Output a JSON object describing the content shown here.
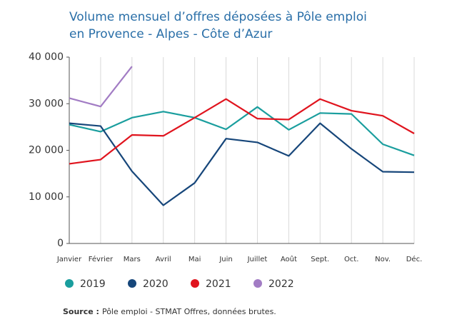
{
  "chart_data": {
    "type": "line",
    "title": [
      "Volume mensuel d’offres déposées à Pôle emploi",
      "en Provence - Alpes - Côte d’Azur"
    ],
    "categories": [
      "Janvier",
      "Février",
      "Mars",
      "Avril",
      "Mai",
      "Juin",
      "Juillet",
      "Août",
      "Sept.",
      "Oct.",
      "Nov.",
      "Déc."
    ],
    "series": [
      {
        "name": "2019",
        "color": "#1a9e9e",
        "values": [
          25500,
          24000,
          27000,
          28300,
          27000,
          24500,
          29300,
          24400,
          28000,
          27800,
          21300,
          18900
        ]
      },
      {
        "name": "2020",
        "color": "#16467a",
        "values": [
          25800,
          25200,
          15500,
          8200,
          13000,
          22500,
          21700,
          18800,
          25800,
          20300,
          15400,
          15300
        ]
      },
      {
        "name": "2021",
        "color": "#e0141e",
        "values": [
          17100,
          18000,
          23300,
          23100,
          27000,
          31000,
          26800,
          26600,
          31000,
          28500,
          27400,
          23600
        ]
      },
      {
        "name": "2022",
        "color": "#a27cc4",
        "values": [
          31200,
          29400,
          38000,
          null,
          null,
          null,
          null,
          null,
          null,
          null,
          null,
          null
        ]
      }
    ],
    "ylim": [
      0,
      40000
    ],
    "yticks": [
      0,
      {
        "value": 10000,
        "label": "10 000"
      },
      {
        "value": 20000,
        "label": "20 000"
      },
      {
        "value": 30000,
        "label": "30 000"
      },
      {
        "value": 40000,
        "label": "40 000"
      }
    ],
    "grid": "x",
    "source_label": "Source :",
    "source_text": "Pôle emploi - STMAT Offres, données brutes."
  }
}
